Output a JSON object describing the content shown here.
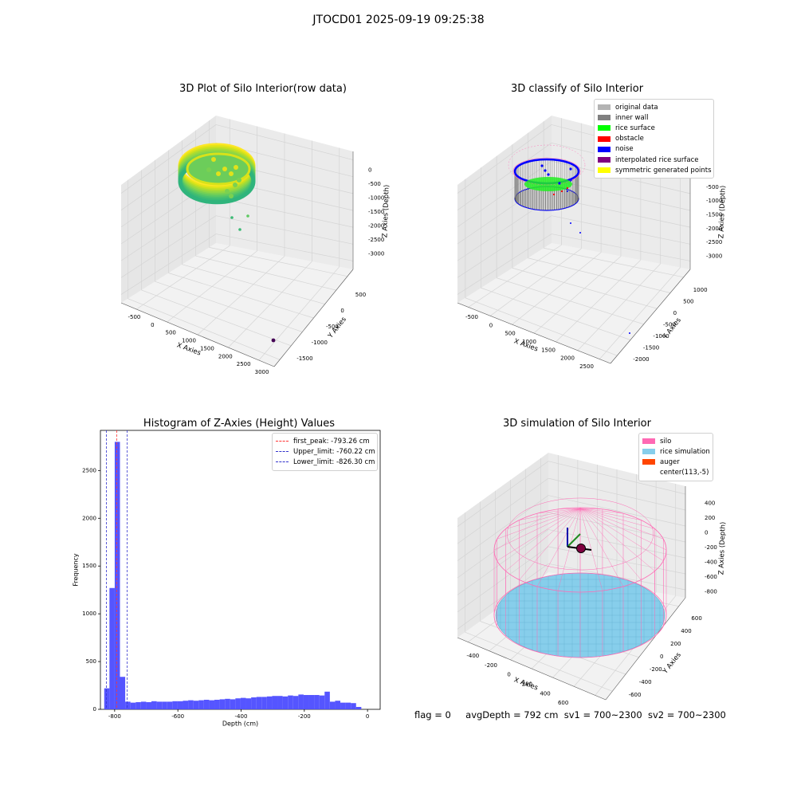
{
  "suptitle": "JTOCD01 2025-09-19 09:25:38",
  "status": {
    "flag": "flag = 0",
    "avg": "avgDepth = 792 cm",
    "sv1": "sv1 = 700~2300",
    "sv2": "sv2 = 700~2300"
  },
  "chart_data": [
    {
      "type": "scatter",
      "title": "3D Plot of Silo Interior(row data)",
      "xlabel": "X Axies",
      "ylabel": "Y Axies",
      "zlabel": "Z Axies (Depth)",
      "x_ticks": [
        "-500",
        "0",
        "500",
        "1000",
        "1500",
        "2000",
        "2500",
        "3000"
      ],
      "y_ticks": [
        "500",
        "0",
        "-500",
        "-1000",
        "-1500"
      ],
      "z_ticks": [
        "0",
        "-500",
        "-1000",
        "-1500",
        "-2000",
        "-2500",
        "-3000"
      ],
      "xlim": [
        -700,
        3000
      ],
      "ylim": [
        -1600,
        800
      ],
      "zlim": [
        -3200,
        100
      ],
      "ring": {
        "center": [
          -100,
          0,
          -700
        ],
        "radius": 600,
        "depth_range": [
          -900,
          -500
        ]
      },
      "outliers": [
        {
          "x": 550,
          "y": 0,
          "z": -1800
        },
        {
          "x": 650,
          "y": 100,
          "z": -1700
        },
        {
          "x": 620,
          "y": -120,
          "z": -2000
        },
        {
          "x": 2900,
          "y": -1350,
          "z": -3000
        }
      ],
      "colormap": "viridis"
    },
    {
      "type": "scatter",
      "title": "3D classify of Silo Interior",
      "xlabel": "X Axies",
      "ylabel": "Y Axies",
      "zlabel": "Z Axies (Depth)",
      "x_ticks": [
        "-500",
        "0",
        "500",
        "1000",
        "1500",
        "2000",
        "2500"
      ],
      "y_ticks": [
        "1000",
        "500",
        "0",
        "-500",
        "-1000",
        "-1500",
        "-2000"
      ],
      "z_ticks": [
        "0",
        "-500",
        "-1000",
        "-1500",
        "-2000",
        "-2500",
        "-3000"
      ],
      "legend": [
        {
          "label": "original data",
          "color": "#b3b3b3"
        },
        {
          "label": "inner wall",
          "color": "#808080"
        },
        {
          "label": "rice surface",
          "color": "#00ff00"
        },
        {
          "label": "obstacle",
          "color": "#ff0000"
        },
        {
          "label": "noise",
          "color": "#0000ff"
        },
        {
          "label": "interpolated rice surface",
          "color": "#800080"
        },
        {
          "label": "symmetric generated points",
          "color": "#ffff00"
        }
      ],
      "legend_loc": "upper right"
    },
    {
      "type": "bar",
      "title": "Histogram of Z-Axies (Height) Values",
      "xlabel": "Depth (cm)",
      "ylabel": "Frequency",
      "x_ticks": [
        "-800",
        "-600",
        "-400",
        "-200",
        "0"
      ],
      "y_ticks": [
        "0",
        "500",
        "1000",
        "1500",
        "2000",
        "2500"
      ],
      "xlim": [
        -845,
        40
      ],
      "ylim": [
        0,
        2920
      ],
      "bin_width": 16.6,
      "bin_start": -833,
      "values": [
        220,
        1270,
        2800,
        340,
        80,
        70,
        75,
        80,
        75,
        85,
        80,
        80,
        80,
        85,
        85,
        90,
        95,
        90,
        95,
        100,
        95,
        100,
        105,
        110,
        105,
        115,
        120,
        115,
        125,
        130,
        130,
        135,
        140,
        140,
        135,
        145,
        140,
        155,
        150,
        150,
        150,
        145,
        185,
        80,
        90,
        70,
        70,
        65,
        25
      ],
      "bar_color": "#4c4cff",
      "vlines": [
        {
          "label": "first_peak: -793.26 cm",
          "x": -793.26,
          "color": "#ff3333"
        },
        {
          "label": "Upper_limit: -760.22 cm",
          "x": -760.22,
          "color": "#3333cc"
        },
        {
          "label": "Lower_limit: -826.30 cm",
          "x": -826.3,
          "color": "#3333cc"
        }
      ],
      "legend_loc": "upper right"
    },
    {
      "type": "scatter",
      "title": "3D simulation of Silo Interior",
      "xlabel": "X Axies",
      "ylabel": "Y Axies",
      "zlabel": "Z Axies (Depth)",
      "x_ticks": [
        "-400",
        "-200",
        "0",
        "200",
        "400",
        "600"
      ],
      "y_ticks": [
        "600",
        "400",
        "200",
        "0",
        "-200",
        "-400",
        "-600"
      ],
      "z_ticks": [
        "400",
        "200",
        "0",
        "-200",
        "-400",
        "-600",
        "-800"
      ],
      "legend": [
        {
          "label": "silo",
          "color": "#ff69b4"
        },
        {
          "label": "rice simulation",
          "color": "#87ceeb"
        },
        {
          "label": "auger",
          "color": "#ff4500"
        },
        {
          "label": "center(113,-5)",
          "color": ""
        }
      ],
      "legend_loc": "upper right",
      "silo_color": "#ff69b4",
      "rice_color": "#87ceeb"
    }
  ]
}
